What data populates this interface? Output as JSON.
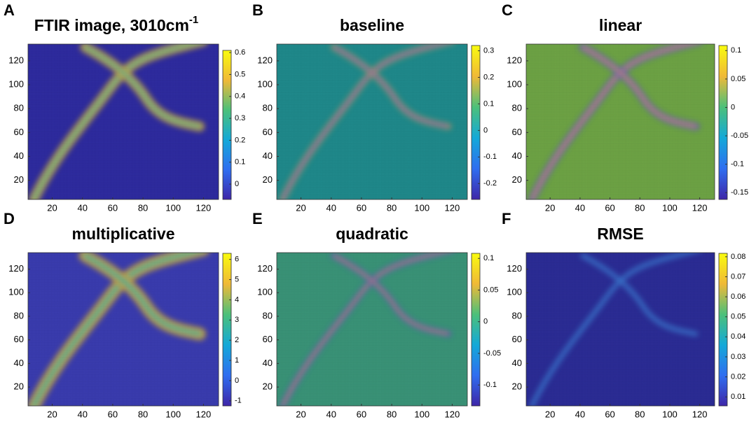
{
  "chart_data": [
    {
      "type": "heatmap",
      "panel": "A",
      "title": "FTIR image, 3010cm",
      "title_superscript": "-1",
      "xlim": [
        4,
        130
      ],
      "xticks": [
        20,
        40,
        60,
        80,
        100,
        120
      ],
      "ylim": [
        4,
        134
      ],
      "yticks": [
        20,
        40,
        60,
        80,
        100,
        120
      ],
      "clim": [
        -0.07,
        0.61
      ],
      "cticks": [
        0,
        0.1,
        0.2,
        0.3,
        0.4,
        0.5,
        0.6
      ]
    },
    {
      "type": "heatmap",
      "panel": "B",
      "title": "baseline",
      "xlim": [
        4,
        130
      ],
      "xticks": [
        20,
        40,
        60,
        80,
        100,
        120
      ],
      "ylim": [
        4,
        134
      ],
      "yticks": [
        20,
        40,
        60,
        80,
        100,
        120
      ],
      "clim": [
        -0.26,
        0.32
      ],
      "cticks": [
        -0.2,
        -0.1,
        0,
        0.1,
        0.2,
        0.3
      ]
    },
    {
      "type": "heatmap",
      "panel": "C",
      "title": "linear",
      "xlim": [
        4,
        130
      ],
      "xticks": [
        20,
        40,
        60,
        80,
        100,
        120
      ],
      "ylim": [
        4,
        134
      ],
      "yticks": [
        20,
        40,
        60,
        80,
        100,
        120
      ],
      "clim": [
        -0.162,
        0.109
      ],
      "cticks": [
        -0.15,
        -0.1,
        -0.05,
        0,
        0.05,
        0.1
      ]
    },
    {
      "type": "heatmap",
      "panel": "D",
      "title": "multiplicative",
      "xlim": [
        4,
        130
      ],
      "xticks": [
        20,
        40,
        60,
        80,
        100,
        120
      ],
      "ylim": [
        4,
        134
      ],
      "yticks": [
        20,
        40,
        60,
        80,
        100,
        120
      ],
      "clim": [
        -1.25,
        6.3
      ],
      "cticks": [
        -1,
        0,
        1,
        2,
        3,
        4,
        5,
        6
      ]
    },
    {
      "type": "heatmap",
      "panel": "E",
      "title": "quadratic",
      "xlim": [
        4,
        130
      ],
      "xticks": [
        20,
        40,
        60,
        80,
        100,
        120
      ],
      "ylim": [
        4,
        134
      ],
      "yticks": [
        20,
        40,
        60,
        80,
        100,
        120
      ],
      "clim": [
        -0.133,
        0.108
      ],
      "cticks": [
        -0.1,
        -0.05,
        0,
        0.05,
        0.1
      ]
    },
    {
      "type": "heatmap",
      "panel": "F",
      "title": "RMSE",
      "xlim": [
        4,
        130
      ],
      "xticks": [
        20,
        40,
        60,
        80,
        100,
        120
      ],
      "ylim": [
        4,
        134
      ],
      "yticks": [
        20,
        40,
        60,
        80,
        100,
        120
      ],
      "clim": [
        0.0055,
        0.0817
      ],
      "cticks": [
        0.01,
        0.02,
        0.03,
        0.04,
        0.05,
        0.06,
        0.07,
        0.08
      ]
    }
  ]
}
